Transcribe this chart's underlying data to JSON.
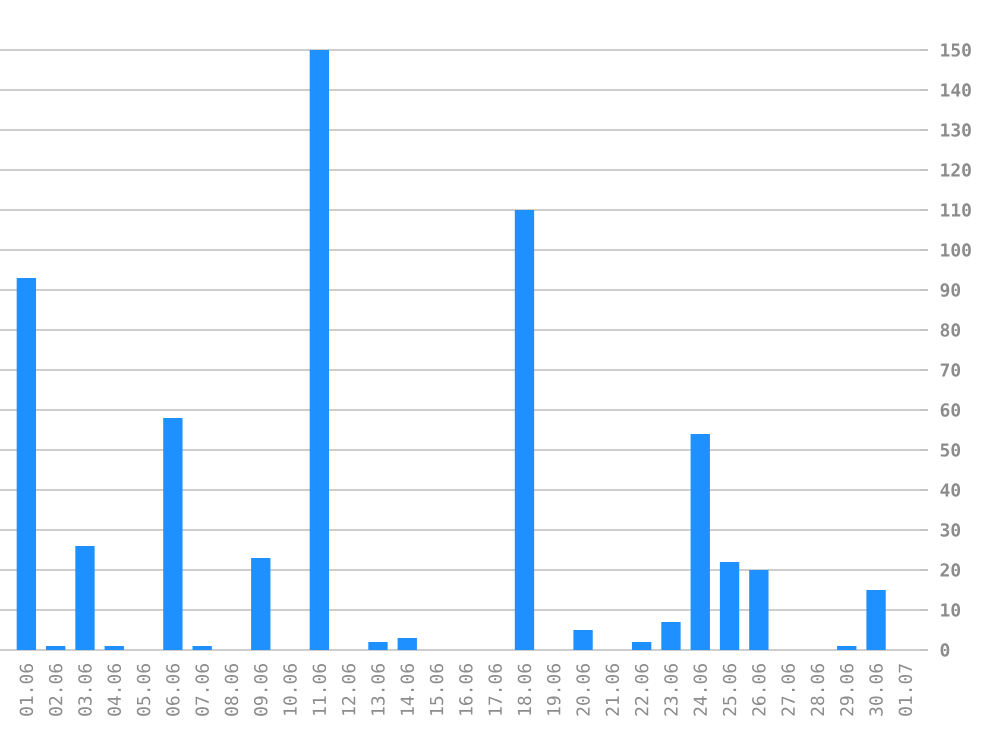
{
  "chart_data": {
    "type": "bar",
    "categories": [
      "01.06",
      "02.06",
      "03.06",
      "04.06",
      "05.06",
      "06.06",
      "07.06",
      "08.06",
      "09.06",
      "10.06",
      "11.06",
      "12.06",
      "13.06",
      "14.06",
      "15.06",
      "16.06",
      "17.06",
      "18.06",
      "19.06",
      "20.06",
      "21.06",
      "22.06",
      "23.06",
      "24.06",
      "25.06",
      "26.06",
      "27.06",
      "28.06",
      "29.06",
      "30.06",
      "01.07"
    ],
    "values": [
      93,
      1,
      26,
      1,
      0,
      58,
      1,
      0,
      23,
      0,
      150,
      0,
      2,
      3,
      0,
      0,
      0,
      110,
      0,
      5,
      0,
      2,
      7,
      54,
      22,
      20,
      0,
      0,
      1,
      15,
      0
    ],
    "color": "#1e90ff",
    "ylim": [
      0,
      150
    ],
    "yticks": [
      0,
      10,
      20,
      30,
      40,
      50,
      60,
      70,
      80,
      90,
      100,
      110,
      120,
      130,
      140,
      150
    ],
    "grid": "y"
  }
}
